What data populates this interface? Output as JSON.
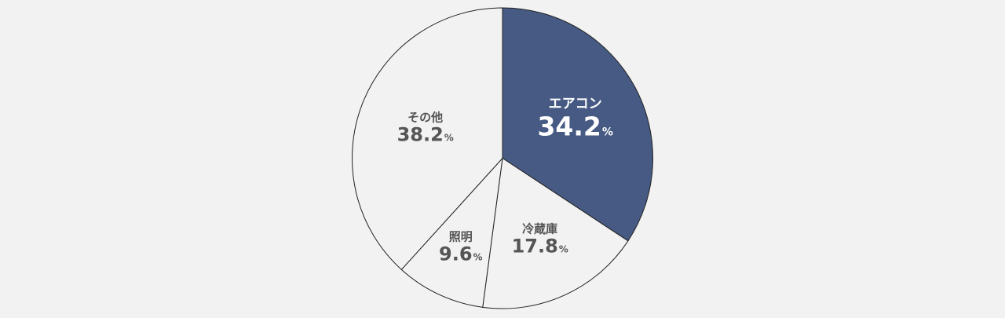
{
  "chart_data": {
    "type": "pie",
    "start": "12-o-clock",
    "direction": "clockwise",
    "percent_symbol": "%",
    "slices": [
      {
        "label": "エアコン",
        "value": 34.2,
        "display": "34.2",
        "fill": "#465a83",
        "text_color": "#ffffff"
      },
      {
        "label": "冷蔵庫",
        "value": 17.8,
        "display": "17.8",
        "fill": "#f2f2f2",
        "text_color": "#555555"
      },
      {
        "label": "照明",
        "value": 9.6,
        "display": "9.6",
        "fill": "#f2f2f2",
        "text_color": "#555555"
      },
      {
        "label": "その他",
        "value": 38.2,
        "display": "38.2",
        "fill": "#f2f2f2",
        "text_color": "#555555"
      }
    ],
    "stroke_color": "#222222"
  }
}
